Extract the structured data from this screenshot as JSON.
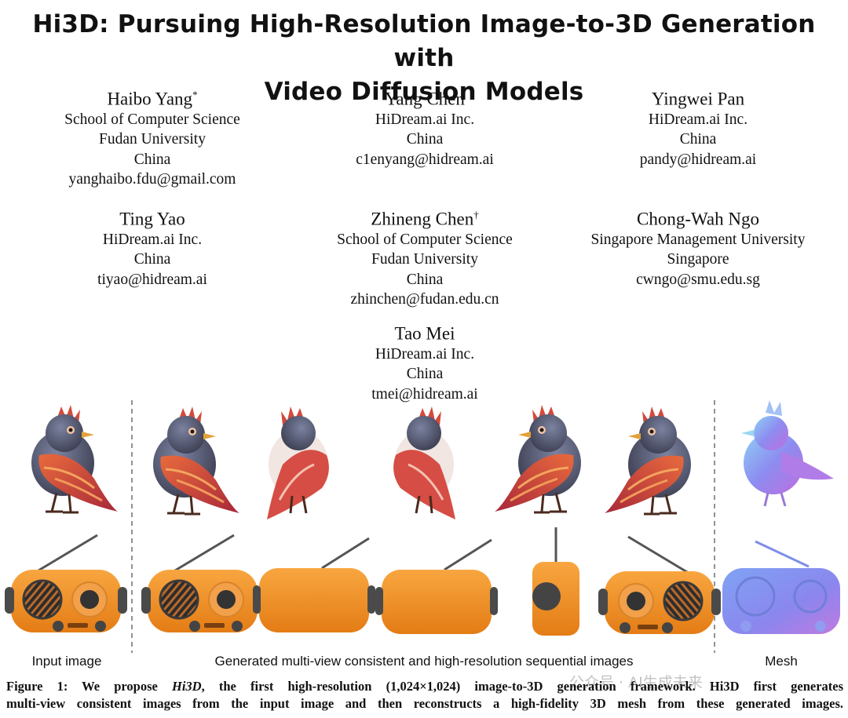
{
  "title": {
    "line1": "Hi3D: Pursuing High-Resolution Image-to-3D Generation with",
    "line2": "Video Diffusion Models"
  },
  "authors": [
    {
      "name": "Haibo Yang",
      "mark": "*",
      "lines": [
        "School of Computer Science",
        "Fudan University",
        "China",
        "yanghaibo.fdu@gmail.com"
      ]
    },
    {
      "name": "Yang Chen",
      "mark": "",
      "lines": [
        "HiDream.ai Inc.",
        "China",
        "c1enyang@hidream.ai"
      ]
    },
    {
      "name": "Yingwei Pan",
      "mark": "",
      "lines": [
        "HiDream.ai Inc.",
        "China",
        "pandy@hidream.ai"
      ]
    },
    {
      "name": "Ting Yao",
      "mark": "",
      "lines": [
        "HiDream.ai Inc.",
        "China",
        "tiyao@hidream.ai"
      ]
    },
    {
      "name": "Zhineng Chen",
      "mark": "†",
      "lines": [
        "School of Computer Science",
        "Fudan University",
        "China",
        "zhinchen@fudan.edu.cn"
      ]
    },
    {
      "name": "Chong-Wah Ngo",
      "mark": "",
      "lines": [
        "Singapore Management University",
        "Singapore",
        "cwngo@smu.edu.sg"
      ]
    },
    {
      "name": "Tao Mei",
      "mark": "",
      "lines": [
        "HiDream.ai Inc.",
        "China",
        "tmei@hidream.ai"
      ]
    }
  ],
  "figure": {
    "label_input": "Input image",
    "label_generated": "Generated multi-view consistent and high-resolution sequential images",
    "label_mesh": "Mesh",
    "colors": {
      "bird_body": "#5a5e73",
      "bird_red": "#c8453a",
      "bird_orange": "#e0823e",
      "radio": "#f3922a",
      "radio_dark": "#3a3a3a",
      "mesh_blue": "#7b9cf0",
      "mesh_purple": "#b07ce8"
    }
  },
  "caption": {
    "prefix": "Figure 1: We propose ",
    "name": "Hi3D",
    "rest1": ", the first high-resolution (1,024×1,024) image-to-3D generation framework. Hi3D first generates",
    "line2": "multi-view consistent images from the input image and then reconstructs a high-fidelity 3D mesh from these generated images."
  },
  "watermark": "公众号 · AI生成未来"
}
